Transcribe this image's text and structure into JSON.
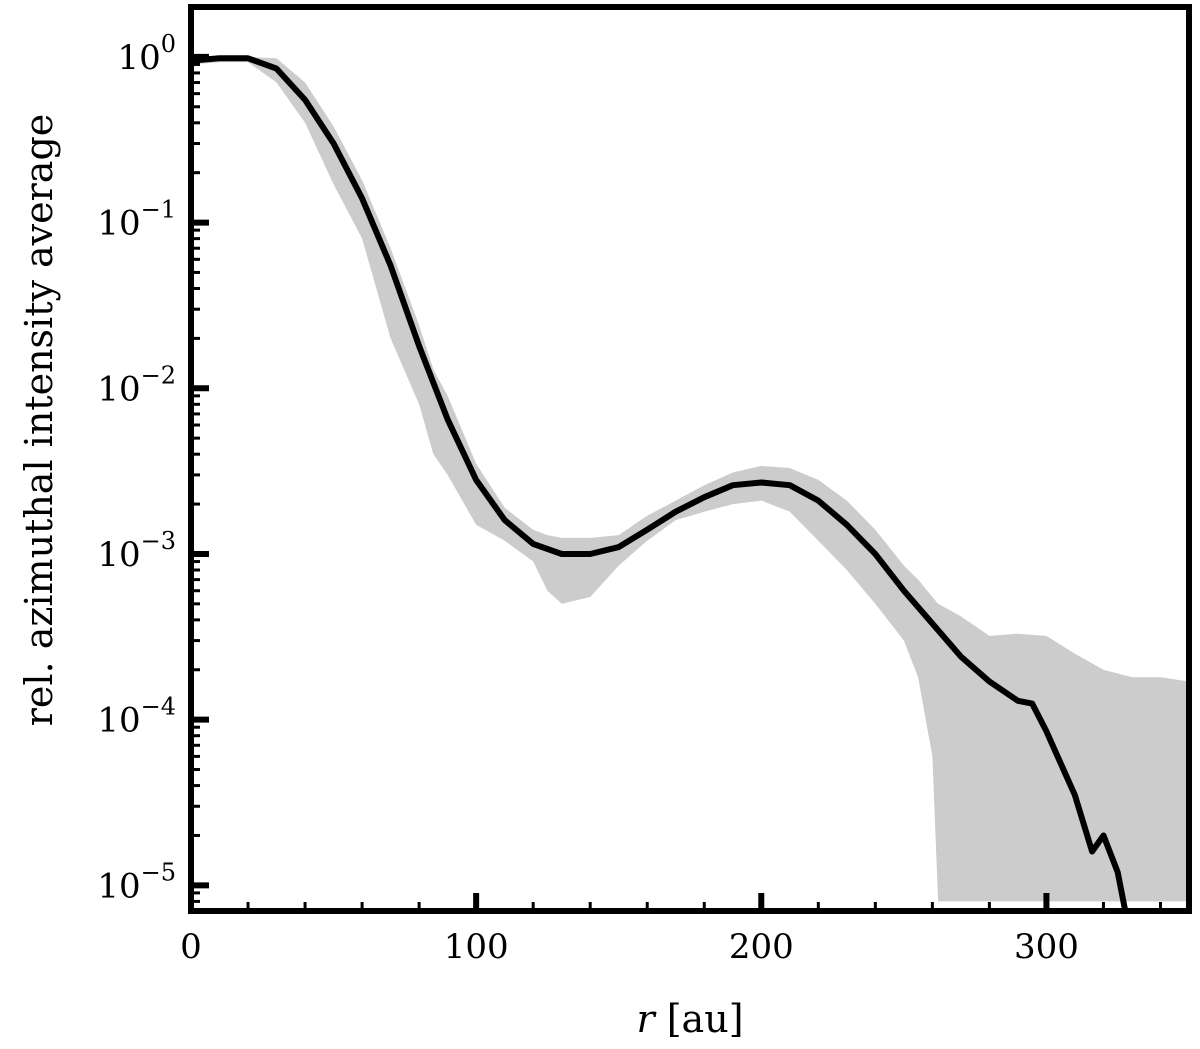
{
  "chart_data": {
    "type": "line",
    "xlabel": {
      "var": "r",
      "unit": " [au]"
    },
    "ylabel": "rel. azimuthal intensity average",
    "xlim": [
      0,
      350
    ],
    "ylim": [
      7e-06,
      2
    ],
    "yscale": "log",
    "grid": false,
    "xticks": [
      {
        "value": 0,
        "label": "0"
      },
      {
        "value": 100,
        "label": "100"
      },
      {
        "value": 200,
        "label": "200"
      },
      {
        "value": 300,
        "label": "300"
      }
    ],
    "yticks": [
      {
        "value": 1,
        "base": "10",
        "exp": "0"
      },
      {
        "value": 0.1,
        "base": "10",
        "exp": "−1"
      },
      {
        "value": 0.01,
        "base": "10",
        "exp": "−2"
      },
      {
        "value": 0.001,
        "base": "10",
        "exp": "−3"
      },
      {
        "value": 0.0001,
        "base": "10",
        "exp": "−4"
      },
      {
        "value": 1e-05,
        "base": "10",
        "exp": "−5"
      }
    ],
    "line": {
      "color": "#000000",
      "x": [
        0,
        10,
        20,
        30,
        40,
        50,
        60,
        70,
        80,
        90,
        100,
        110,
        120,
        130,
        140,
        150,
        160,
        170,
        180,
        190,
        200,
        210,
        220,
        230,
        240,
        250,
        260,
        270,
        280,
        290,
        295,
        300,
        310,
        316,
        320,
        325,
        328
      ],
      "y": [
        0.95,
        0.98,
        0.98,
        0.85,
        0.55,
        0.3,
        0.14,
        0.055,
        0.018,
        0.0065,
        0.0028,
        0.0016,
        0.00115,
        0.001,
        0.001,
        0.0011,
        0.0014,
        0.0018,
        0.0022,
        0.0026,
        0.0027,
        0.0026,
        0.0021,
        0.0015,
        0.001,
        0.0006,
        0.00038,
        0.00024,
        0.00017,
        0.00013,
        0.000125,
        8.5e-05,
        3.5e-05,
        1.6e-05,
        2e-05,
        1.2e-05,
        6.5e-06
      ]
    },
    "band": {
      "color": "#cccccc",
      "x": [
        0,
        10,
        20,
        30,
        40,
        50,
        60,
        70,
        80,
        85,
        90,
        100,
        110,
        120,
        125,
        130,
        140,
        150,
        160,
        170,
        180,
        190,
        200,
        210,
        220,
        230,
        240,
        250,
        255,
        260,
        262,
        270,
        280,
        290,
        300,
        310,
        320,
        330,
        340,
        350
      ],
      "upper": [
        1.0,
        1.0,
        1.0,
        0.98,
        0.7,
        0.38,
        0.18,
        0.07,
        0.024,
        0.013,
        0.009,
        0.0035,
        0.0019,
        0.0014,
        0.0013,
        0.00125,
        0.00125,
        0.0013,
        0.0017,
        0.0021,
        0.0026,
        0.0031,
        0.0034,
        0.0033,
        0.0028,
        0.0021,
        0.0014,
        0.00085,
        0.0007,
        0.00055,
        0.0005,
        0.00042,
        0.00032,
        0.00033,
        0.00032,
        0.00025,
        0.0002,
        0.00018,
        0.00018,
        0.00017
      ],
      "lower": [
        0.9,
        0.93,
        0.93,
        0.7,
        0.4,
        0.17,
        0.08,
        0.02,
        0.008,
        0.004,
        0.003,
        0.0015,
        0.0012,
        0.0009,
        0.0006,
        0.0005,
        0.00055,
        0.00085,
        0.0012,
        0.0016,
        0.0018,
        0.002,
        0.0021,
        0.0018,
        0.0012,
        0.0008,
        0.0005,
        0.0003,
        0.00018,
        6e-05,
        8e-06,
        8e-06,
        8e-06,
        8e-06,
        8e-06,
        8e-06,
        8e-06,
        8e-06,
        8e-06,
        8e-06
      ]
    }
  }
}
